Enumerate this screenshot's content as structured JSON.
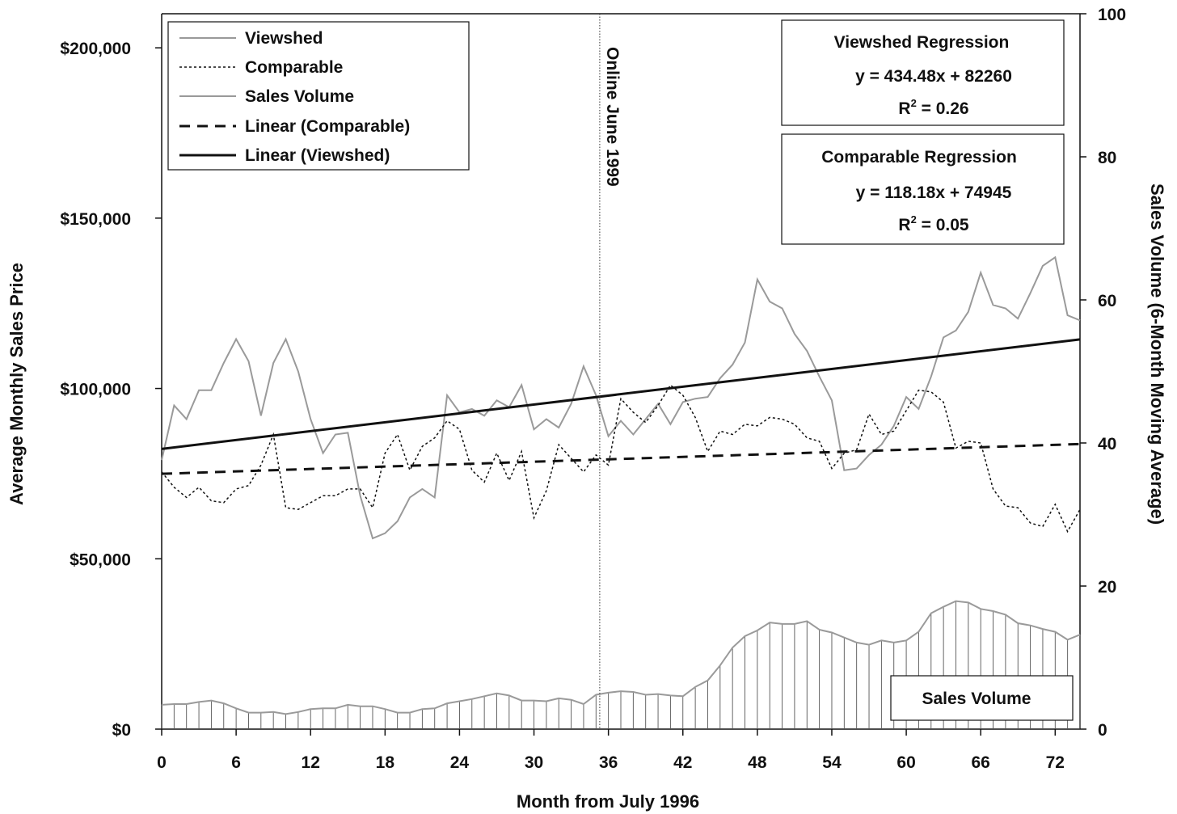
{
  "chart_data": {
    "type": "line",
    "xlabel": "Month from July 1996",
    "ylabel": "Average Monthly Sales Price",
    "y2label": "Sales Volume (6-Month Moving Average)",
    "xlim": [
      0,
      74
    ],
    "ylim": [
      0,
      210000
    ],
    "y2lim": [
      0,
      100
    ],
    "x_ticks": [
      0,
      6,
      12,
      18,
      24,
      30,
      36,
      42,
      48,
      54,
      60,
      66,
      72
    ],
    "y_ticks": [
      0,
      50000,
      100000,
      150000,
      200000
    ],
    "y_tick_labels": [
      "$0",
      "$50,000",
      "$100,000",
      "$150,000",
      "$200,000"
    ],
    "y2_ticks": [
      0,
      20,
      40,
      60,
      80,
      100
    ],
    "grid": false,
    "legend_position": "top-left",
    "legend": [
      "Viewshed",
      "Comparable",
      "Sales Volume",
      "Linear (Comparable)",
      "Linear (Viewshed)"
    ],
    "annotation": {
      "label": "Online June 1999",
      "x": 35.3
    },
    "regression_boxes": [
      {
        "title": "Viewshed Regression",
        "equation": "y = 434.48x + 82260",
        "r2_prefix": "R",
        "r2_exp": "2",
        "r2_value": " = 0.26"
      },
      {
        "title": "Comparable Regression",
        "equation": "y = 118.18x + 74945",
        "r2_prefix": "R",
        "r2_exp": "2",
        "r2_value": " = 0.05"
      }
    ],
    "volume_label": "Sales Volume",
    "series": [
      {
        "name": "Viewshed",
        "axis": "left",
        "style": "solid-gray",
        "values": [
          79000,
          95000,
          91000,
          99500,
          99500,
          107500,
          114500,
          108000,
          92000,
          107500,
          114500,
          105000,
          91000,
          81000,
          86500,
          87000,
          68500,
          56000,
          57500,
          61000,
          68000,
          70500,
          68000,
          98000,
          93000,
          94000,
          92000,
          96500,
          94500,
          101000,
          88000,
          91000,
          88500,
          95500,
          106500,
          98000,
          86000,
          90500,
          86500,
          91000,
          95500,
          89500,
          96000,
          97000,
          97500,
          103000,
          107000,
          113500,
          132000,
          125500,
          123500,
          116000,
          111000,
          103500,
          96500,
          76000,
          76500,
          80500,
          83500,
          89000,
          97500,
          94000,
          103500,
          115000,
          117000,
          122500,
          134000,
          124500,
          123500,
          120500,
          128000,
          136000,
          138500,
          121500,
          120000
        ]
      },
      {
        "name": "Comparable",
        "axis": "left",
        "style": "dotted-black",
        "values": [
          75500,
          71000,
          68000,
          71000,
          67000,
          66500,
          70500,
          71500,
          77500,
          86500,
          65000,
          64500,
          66500,
          68500,
          68500,
          70500,
          70500,
          65000,
          81000,
          86500,
          76000,
          83000,
          85500,
          90500,
          88000,
          76000,
          72500,
          81000,
          73000,
          81500,
          62000,
          70000,
          83500,
          79500,
          75500,
          80500,
          77500,
          97000,
          93000,
          90000,
          95000,
          101000,
          98000,
          91500,
          81500,
          87500,
          86500,
          89500,
          89000,
          91500,
          91000,
          89500,
          85500,
          84500,
          76500,
          81000,
          82000,
          92500,
          86500,
          87500,
          93500,
          99500,
          99000,
          96000,
          82500,
          84500,
          84000,
          70500,
          65500,
          65000,
          60500,
          59500,
          66000,
          58000,
          64500
        ]
      },
      {
        "name": "Sales Volume",
        "axis": "right",
        "style": "gray-with-fill",
        "values": [
          3.4,
          3.5,
          3.5,
          3.8,
          4.0,
          3.6,
          2.9,
          2.3,
          2.3,
          2.4,
          2.1,
          2.4,
          2.8,
          2.9,
          2.9,
          3.4,
          3.2,
          3.2,
          2.8,
          2.3,
          2.3,
          2.8,
          2.9,
          3.6,
          3.9,
          4.2,
          4.6,
          5.0,
          4.7,
          4.0,
          4.0,
          3.9,
          4.3,
          4.1,
          3.5,
          4.8,
          5.1,
          5.3,
          5.2,
          4.8,
          4.9,
          4.7,
          4.6,
          5.9,
          6.8,
          8.9,
          11.4,
          13.0,
          13.8,
          14.9,
          14.7,
          14.7,
          15.1,
          13.9,
          13.5,
          12.8,
          12.1,
          11.8,
          12.4,
          12.1,
          12.4,
          13.6,
          16.2,
          17.1,
          17.9,
          17.7,
          16.8,
          16.5,
          16.0,
          14.8,
          14.5,
          14.0,
          13.6,
          12.5,
          13.2
        ]
      },
      {
        "name": "Linear (Comparable)",
        "axis": "left",
        "style": "dashed-black",
        "slope": 118.18,
        "intercept": 74945
      },
      {
        "name": "Linear (Viewshed)",
        "axis": "left",
        "style": "solid-black",
        "slope": 434.48,
        "intercept": 82260
      }
    ]
  }
}
